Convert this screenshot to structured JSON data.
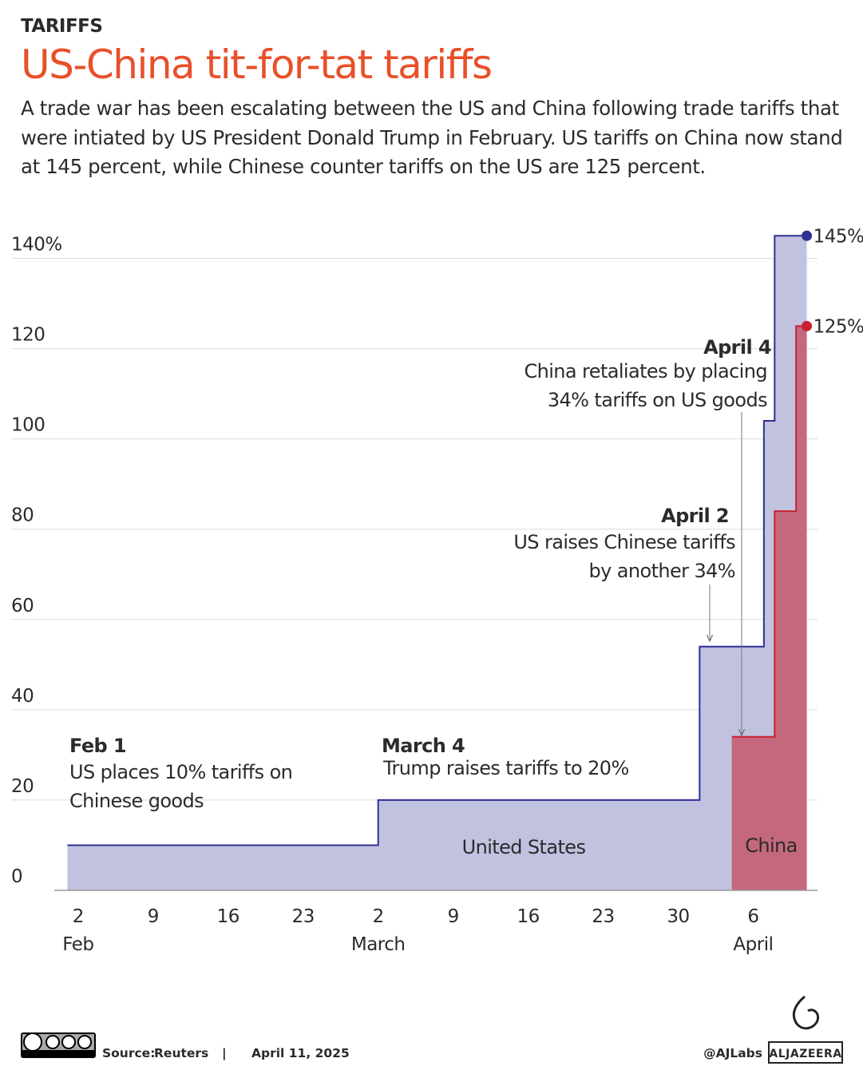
{
  "header": {
    "kicker": "TARIFFS"
  },
  "chart_data": {
    "type": "step-area",
    "title": "US-China tit-for-tat tariffs",
    "subtitle": "A trade war has been escalating between the US and China following trade tariffs that were intiated by US President Donald Trump in February. US tariffs on China now stand at 145 percent, while Chinese counter tariffs on the US are 125 percent.",
    "xlim": [
      "Jan 31",
      "Apr 12"
    ],
    "ylim": [
      0,
      150
    ],
    "yticks": [
      0,
      20,
      40,
      60,
      80,
      100,
      120,
      {
        "value": 140,
        "label": "140%"
      }
    ],
    "xticks": [
      {
        "value": "Feb 2",
        "label": "2"
      },
      {
        "value": "Feb 9",
        "label": "9"
      },
      {
        "value": "Feb 16",
        "label": "16"
      },
      {
        "value": "Feb 23",
        "label": "23"
      },
      {
        "value": "Mar 2",
        "label": "2"
      },
      {
        "value": "Mar 9",
        "label": "9"
      },
      {
        "value": "Mar 16",
        "label": "16"
      },
      {
        "value": "Mar 23",
        "label": "23"
      },
      {
        "value": "Mar 30",
        "label": "30"
      },
      {
        "value": "Apr 6",
        "label": "6"
      }
    ],
    "month_labels": [
      {
        "value": "Feb 2",
        "label": "Feb"
      },
      {
        "value": "Mar 2",
        "label": "March"
      },
      {
        "value": "Apr 6",
        "label": "April"
      }
    ],
    "grid": true,
    "series": [
      {
        "name": "United States",
        "color": "#2e3192",
        "fill": "#c1c1e0",
        "x": [
          "Feb 1",
          "Mar 2",
          "Apr 1",
          "Apr 7",
          "Apr 8",
          "Apr 11"
        ],
        "values": [
          10,
          20,
          54,
          104,
          145,
          145
        ],
        "value_labels": [
          null,
          null,
          null,
          null,
          null,
          "145%"
        ]
      },
      {
        "name": "China",
        "color": "#c8202f",
        "fill": "#c5687e",
        "x": [
          "Apr 4",
          "Apr 8",
          "Apr 10",
          "Apr 11"
        ],
        "values": [
          34,
          84,
          125,
          125
        ],
        "value_labels": [
          null,
          null,
          null,
          "125%"
        ]
      }
    ],
    "annotations": [
      {
        "title": "Feb 1",
        "text": [
          "US places 10% tariffs on",
          "Chinese goods"
        ]
      },
      {
        "title": "March 4",
        "text": [
          "Trump raises tariffs to 20%"
        ]
      },
      {
        "title": "April 2",
        "text": [
          "US raises Chinese tariffs",
          "by another 34%"
        ]
      },
      {
        "title": "April 4",
        "text": [
          "China retaliates by placing",
          "34% tariffs on US goods"
        ]
      }
    ]
  },
  "footer": {
    "source_label": "Source:",
    "source": "Reuters",
    "separator": "|",
    "date": "April 11, 2025",
    "handle": "@AJLabs",
    "brand": "ALJAZEERA"
  }
}
